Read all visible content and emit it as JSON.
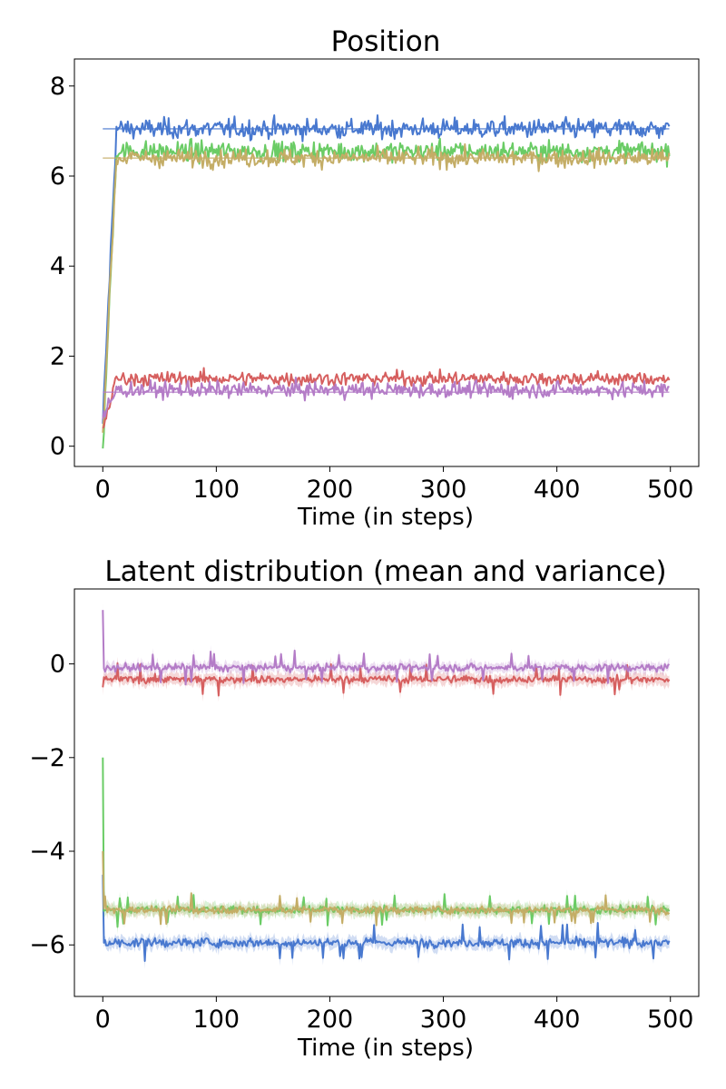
{
  "chart_data": [
    {
      "type": "line",
      "title": "Position",
      "xlabel": "Time (in steps)",
      "ylabel": "",
      "xlim": [
        -25,
        525
      ],
      "ylim": [
        -0.45,
        8.6
      ],
      "xticks": [
        0,
        100,
        200,
        300,
        400,
        500
      ],
      "yticks": [
        0,
        2,
        4,
        6,
        8
      ],
      "xtick_labels": [
        "0",
        "100",
        "200",
        "300",
        "400",
        "500"
      ],
      "ytick_labels": [
        "0",
        "2",
        "4",
        "6",
        "8"
      ],
      "grid": false,
      "legend": "none",
      "steps": 500,
      "series": [
        {
          "color": "#4878cf",
          "start": 0.5,
          "level": 7.05,
          "noise": 0.28,
          "target": 7.05
        },
        {
          "color": "#6acc65",
          "start": -0.05,
          "level": 6.55,
          "noise": 0.28
        },
        {
          "color": "#c4ad66",
          "start": 0.3,
          "level": 6.4,
          "noise": 0.25,
          "target": 6.4
        },
        {
          "color": "#d65f5f",
          "start": 0.4,
          "level": 1.5,
          "noise": 0.2
        },
        {
          "color": "#b47cc7",
          "start": 0.6,
          "level": 1.25,
          "noise": 0.22,
          "target": 1.2
        }
      ]
    },
    {
      "type": "line",
      "title": "Latent distribution (mean and variance)",
      "xlabel": "Time (in steps)",
      "ylabel": "",
      "xlim": [
        -25,
        525
      ],
      "ylim": [
        -7.1,
        1.6
      ],
      "xticks": [
        0,
        100,
        200,
        300,
        400,
        500
      ],
      "yticks": [
        0,
        -2,
        -4,
        -6
      ],
      "xtick_labels": [
        "0",
        "100",
        "200",
        "300",
        "400",
        "500"
      ],
      "ytick_labels": [
        "0",
        "−2",
        "−4",
        "−6"
      ],
      "grid": false,
      "legend": "none",
      "steps": 500,
      "series": [
        {
          "color": "#4878cf",
          "start": -4.5,
          "level": -5.95,
          "noise": 0.12,
          "band": 0.12
        },
        {
          "color": "#6acc65",
          "start": -2.0,
          "level": -5.25,
          "noise": 0.1,
          "band": 0.12
        },
        {
          "color": "#c4ad66",
          "start": -4.0,
          "level": -5.25,
          "noise": 0.1,
          "band": 0.12
        },
        {
          "color": "#d65f5f",
          "start": -0.5,
          "level": -0.33,
          "noise": 0.1,
          "band": 0.12
        },
        {
          "color": "#b47cc7",
          "start": 1.15,
          "level": -0.08,
          "noise": 0.1,
          "band": 0.1
        }
      ]
    }
  ]
}
